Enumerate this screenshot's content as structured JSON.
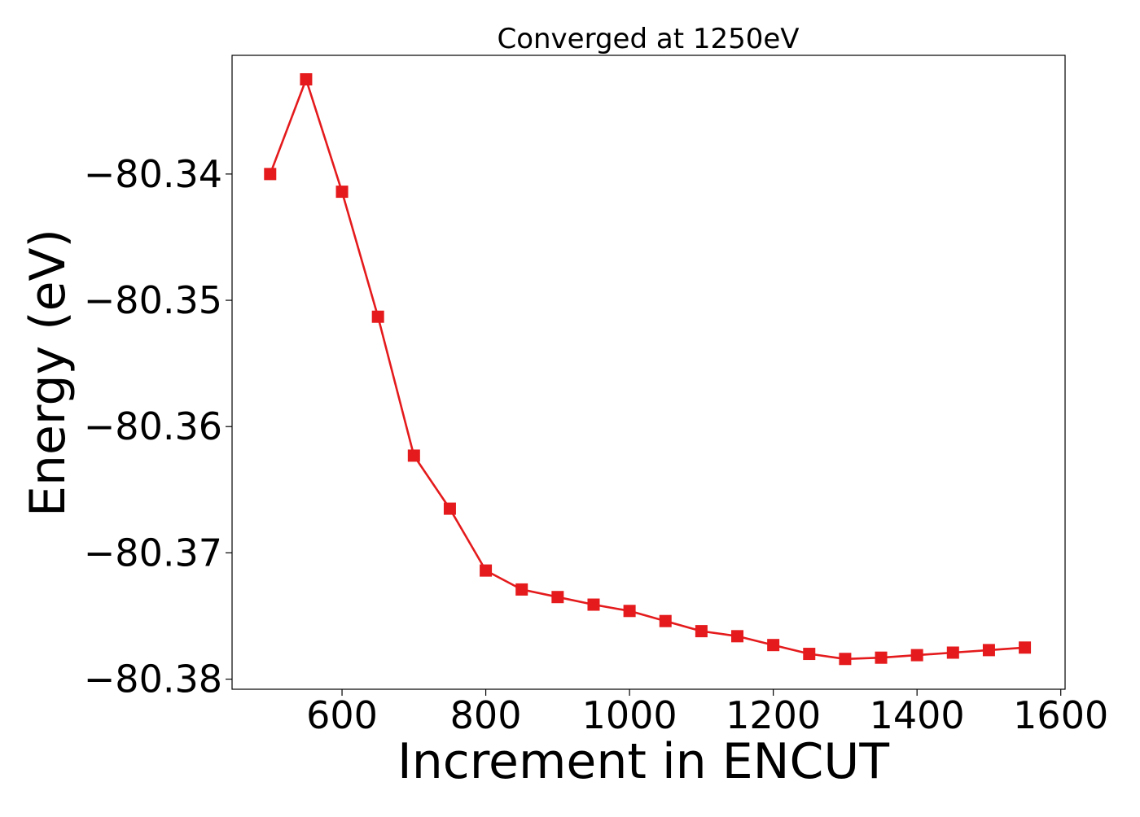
{
  "chart_data": {
    "type": "line",
    "title": "Converged at 1250eV",
    "xlabel": "Increment in ENCUT",
    "ylabel": "Energy (eV)",
    "xlim": [
      447,
      1606
    ],
    "ylim": [
      -80.3808,
      -80.3306
    ],
    "xticks": [
      600,
      800,
      1000,
      1200,
      1400,
      1600
    ],
    "yticks": [
      -80.34,
      -80.35,
      -80.36,
      -80.37,
      -80.38
    ],
    "xtick_labels": [
      "600",
      "800",
      "1000",
      "1200",
      "1400",
      "1600"
    ],
    "ytick_labels": [
      "−80.34",
      "−80.35",
      "−80.36",
      "−80.37",
      "−80.38"
    ],
    "grid": false,
    "series": [
      {
        "color": "#e41a1c",
        "marker": "square",
        "x": [
          500,
          550,
          600,
          650,
          700,
          750,
          800,
          850,
          900,
          950,
          1000,
          1050,
          1100,
          1150,
          1200,
          1250,
          1300,
          1350,
          1400,
          1450,
          1500,
          1550
        ],
        "y": [
          -80.34,
          -80.3325,
          -80.3414,
          -80.3513,
          -80.3623,
          -80.3665,
          -80.3714,
          -80.3729,
          -80.3735,
          -80.3741,
          -80.3746,
          -80.3754,
          -80.3762,
          -80.3766,
          -80.3773,
          -80.378,
          -80.3784,
          -80.3783,
          -80.3781,
          -80.3779,
          -80.3777,
          -80.3775
        ]
      }
    ]
  }
}
